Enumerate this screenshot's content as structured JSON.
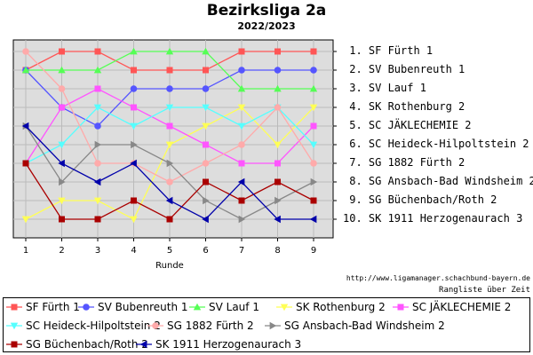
{
  "title": "Bezirksliga 2a",
  "subtitle": "2022/2023",
  "source_text": "http://www.ligamanager.schachbund-bayern.de",
  "ranking_note": "Rangliste über Zeit",
  "chart_data": {
    "type": "line",
    "xlabel": "Runde",
    "ylabel": "",
    "x": [
      1,
      2,
      3,
      4,
      5,
      6,
      7,
      8,
      9
    ],
    "xlim": [
      1,
      9
    ],
    "ylim": [
      1,
      10
    ],
    "y_inverted": true,
    "y_tick_labels": [
      "1. SF Fürth 1",
      "2. SV Bubenreuth 1",
      "3. SV Lauf 1",
      "4. SK Rothenburg 2",
      "5. SC JÄKLECHEMIE 2",
      "6. SC Heideck-Hilpoltstein 2",
      "7. SG 1882 Fürth 2",
      "8. SG Ansbach-Bad Windsheim 2",
      "9. SG Büchenbach/Roth 2",
      "10. SK 1911 Herzogenaurach 3"
    ],
    "grid": true,
    "legend_position": "bottom",
    "series": [
      {
        "name": "SF Fürth 1",
        "color": "#ff5555",
        "marker": "square",
        "values": [
          2,
          1,
          1,
          2,
          2,
          2,
          1,
          1,
          1
        ]
      },
      {
        "name": "SV Bubenreuth 1",
        "color": "#5555ff",
        "marker": "circle",
        "values": [
          2,
          4,
          5,
          3,
          3,
          3,
          2,
          2,
          2
        ]
      },
      {
        "name": "SV Lauf 1",
        "color": "#55ff55",
        "marker": "triangle-up",
        "values": [
          2,
          2,
          2,
          1,
          1,
          1,
          3,
          3,
          3
        ]
      },
      {
        "name": "SK Rothenburg 2",
        "color": "#ffff55",
        "marker": "triangle-down",
        "values": [
          10,
          9,
          9,
          10,
          6,
          5,
          4,
          6,
          4
        ]
      },
      {
        "name": "SC JÄKLECHEMIE 2",
        "color": "#ff55ff",
        "marker": "square",
        "values": [
          7,
          4,
          3,
          4,
          5,
          6,
          7,
          7,
          5
        ]
      },
      {
        "name": "SC Heideck-Hilpoltstein 2",
        "color": "#55ffff",
        "marker": "triangle-down",
        "values": [
          7,
          6,
          4,
          5,
          4,
          4,
          5,
          4,
          6
        ]
      },
      {
        "name": "SG 1882 Fürth 2",
        "color": "#ffaaaa",
        "marker": "circle",
        "values": [
          1,
          3,
          7,
          7,
          8,
          7,
          6,
          4,
          7
        ]
      },
      {
        "name": "SG Ansbach-Bad Windsheim 2",
        "color": "#888888",
        "marker": "triangle-right",
        "values": [
          5,
          8,
          6,
          6,
          7,
          9,
          10,
          9,
          8
        ]
      },
      {
        "name": "SG Büchenbach/Roth 2",
        "color": "#aa0000",
        "marker": "square",
        "values": [
          7,
          10,
          10,
          9,
          10,
          8,
          9,
          8,
          9
        ]
      },
      {
        "name": "SK 1911 Herzogenaurach 3",
        "color": "#0000aa",
        "marker": "triangle-left",
        "values": [
          5,
          7,
          8,
          7,
          9,
          10,
          8,
          10,
          10
        ]
      }
    ]
  }
}
